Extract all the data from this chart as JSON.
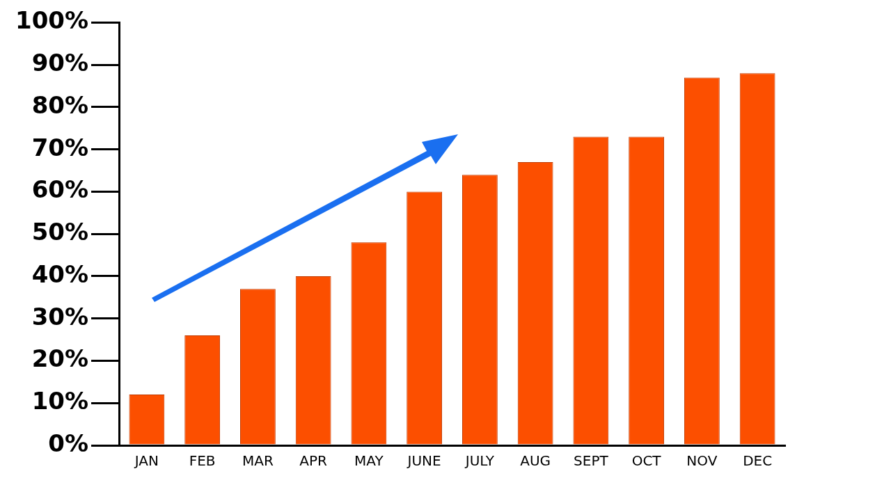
{
  "chart_data": {
    "type": "bar",
    "categories": [
      "JAN",
      "FEB",
      "MAR",
      "APR",
      "MAY",
      "JUNE",
      "JULY",
      "AUG",
      "SEPT",
      "OCT",
      "NOV",
      "DEC"
    ],
    "values": [
      12,
      26,
      37,
      40,
      48,
      60,
      64,
      67,
      73,
      73,
      87,
      88
    ],
    "color": "#fc4f00",
    "ylim": [
      0,
      100
    ],
    "yticks": [
      {
        "value": 0,
        "label": "0%"
      },
      {
        "value": 10,
        "label": "10%"
      },
      {
        "value": 20,
        "label": "20%"
      },
      {
        "value": 30,
        "label": "30%"
      },
      {
        "value": 40,
        "label": "40%"
      },
      {
        "value": 50,
        "label": "50%"
      },
      {
        "value": 60,
        "label": "60%"
      },
      {
        "value": 70,
        "label": "70%"
      },
      {
        "value": 80,
        "label": "80%"
      },
      {
        "value": 90,
        "label": "90%"
      },
      {
        "value": 100,
        "label": "100%"
      }
    ],
    "grid": false,
    "legend": false
  }
}
